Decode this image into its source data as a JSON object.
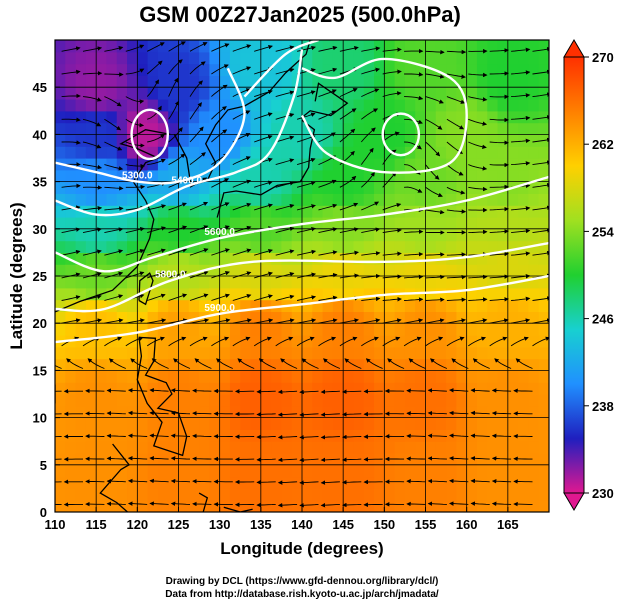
{
  "chart_data": {
    "type": "heatmap",
    "title": "GSM 00Z27Jan2025 (500.0hPa)",
    "xlabel": "Longitude (degrees)",
    "ylabel": "Latitude  (degrees)",
    "xlim": [
      110,
      170
    ],
    "ylim": [
      0,
      50
    ],
    "x_ticks": [
      110,
      115,
      120,
      125,
      130,
      135,
      140,
      145,
      150,
      155,
      160,
      165
    ],
    "y_ticks": [
      0,
      5,
      10,
      15,
      20,
      25,
      30,
      35,
      40,
      45
    ],
    "grid": true,
    "field": "temperature (K) shaded, geopotential height contours, streamlines",
    "colorbar": {
      "min": 230,
      "max": 270,
      "tick_labels": [
        "270",
        "262",
        "254",
        "246",
        "238",
        "230"
      ],
      "colors": [
        "#e01890",
        "#1f1fbf",
        "#2090ff",
        "#18d0d0",
        "#20d030",
        "#a0e020",
        "#ffd000",
        "#ff8000",
        "#ff3000"
      ]
    },
    "contours": [
      {
        "label": "5300.0",
        "points": [
          [
            110,
            37
          ],
          [
            115,
            36
          ],
          [
            120,
            35
          ],
          [
            125,
            35
          ],
          [
            130,
            37
          ],
          [
            133,
            42
          ],
          [
            131,
            47
          ]
        ]
      },
      {
        "label": "5400.0",
        "points": [
          [
            110,
            33
          ],
          [
            115,
            31.5
          ],
          [
            120,
            32
          ],
          [
            126,
            34.5
          ],
          [
            132,
            36
          ],
          [
            136,
            38
          ],
          [
            139,
            44
          ],
          [
            140,
            49
          ]
        ]
      },
      {
        "label": "5600.0",
        "points": [
          [
            110,
            27.5
          ],
          [
            116,
            25.5
          ],
          [
            122,
            27
          ],
          [
            130,
            29
          ],
          [
            140,
            30.5
          ],
          [
            150,
            31.5
          ],
          [
            160,
            33
          ],
          [
            170,
            35.5
          ]
        ]
      },
      {
        "label": "5800.0",
        "points": [
          [
            110,
            21.5
          ],
          [
            116,
            21.5
          ],
          [
            124,
            24.5
          ],
          [
            134,
            26.5
          ],
          [
            150,
            26.5
          ],
          [
            160,
            27
          ],
          [
            170,
            28.5
          ]
        ]
      },
      {
        "label": "5900.0",
        "points": [
          [
            110,
            18
          ],
          [
            120,
            19
          ],
          [
            130,
            21
          ],
          [
            140,
            22
          ],
          [
            150,
            23
          ],
          [
            160,
            23.5
          ],
          [
            170,
            25
          ]
        ]
      }
    ],
    "closed_contours": [
      {
        "center": [
          121.5,
          40
        ],
        "rx": 2.2,
        "ry": 2.6
      },
      {
        "center": [
          152,
          40
        ],
        "rx": 2.2,
        "ry": 2.2
      }
    ],
    "ridge_contours": [
      {
        "points": [
          [
            140,
            47
          ],
          [
            144,
            46
          ],
          [
            150,
            48
          ],
          [
            158,
            46
          ],
          [
            160,
            42
          ],
          [
            158,
            37
          ],
          [
            150,
            36
          ],
          [
            143,
            38
          ],
          [
            140,
            42
          ]
        ]
      },
      {
        "points": [
          [
            133,
            44
          ],
          [
            138,
            48.5
          ],
          [
            142,
            50
          ]
        ]
      }
    ],
    "temperature_points": [
      [
        115,
        45,
        232
      ],
      [
        125,
        45,
        236
      ],
      [
        135,
        47,
        244
      ],
      [
        145,
        47,
        248
      ],
      [
        155,
        47,
        252
      ],
      [
        165,
        46,
        250
      ],
      [
        115,
        40,
        236
      ],
      [
        121,
        40,
        231
      ],
      [
        130,
        40,
        240
      ],
      [
        140,
        40,
        246
      ],
      [
        150,
        40,
        250
      ],
      [
        160,
        40,
        254
      ],
      [
        115,
        35,
        240
      ],
      [
        125,
        35,
        242
      ],
      [
        135,
        35,
        246
      ],
      [
        145,
        35,
        250
      ],
      [
        155,
        35,
        253
      ],
      [
        165,
        35,
        254
      ],
      [
        115,
        30,
        246
      ],
      [
        125,
        30,
        250
      ],
      [
        135,
        30,
        252
      ],
      [
        145,
        30,
        254
      ],
      [
        155,
        30,
        255
      ],
      [
        165,
        30,
        256
      ],
      [
        115,
        25,
        253
      ],
      [
        125,
        25,
        256
      ],
      [
        135,
        25,
        258
      ],
      [
        145,
        25,
        259
      ],
      [
        155,
        25,
        259
      ],
      [
        165,
        26,
        258
      ],
      [
        115,
        20,
        261
      ],
      [
        125,
        20,
        263
      ],
      [
        135,
        20,
        265
      ],
      [
        145,
        20,
        265
      ],
      [
        155,
        20,
        264
      ],
      [
        165,
        20,
        262
      ],
      [
        115,
        12,
        264
      ],
      [
        125,
        12,
        265
      ],
      [
        135,
        12,
        267
      ],
      [
        145,
        12,
        267
      ],
      [
        155,
        12,
        266
      ],
      [
        165,
        12,
        264
      ],
      [
        115,
        4,
        264
      ],
      [
        125,
        4,
        265
      ],
      [
        135,
        4,
        266
      ],
      [
        145,
        4,
        266
      ],
      [
        155,
        4,
        265
      ],
      [
        165,
        4,
        264
      ]
    ],
    "wind_flow": "westerly jet 28–40N; cyclonic vortex near 121E 40N; anticyclonic vortex near 152E 40N; easterlies south of 15N"
  },
  "credits": {
    "line1": "Drawing by DCL (https://www.gfd-dennou.org/library/dcl/)",
    "line2": "Data from http://database.rish.kyoto-u.ac.jp/arch/jmadata/"
  }
}
